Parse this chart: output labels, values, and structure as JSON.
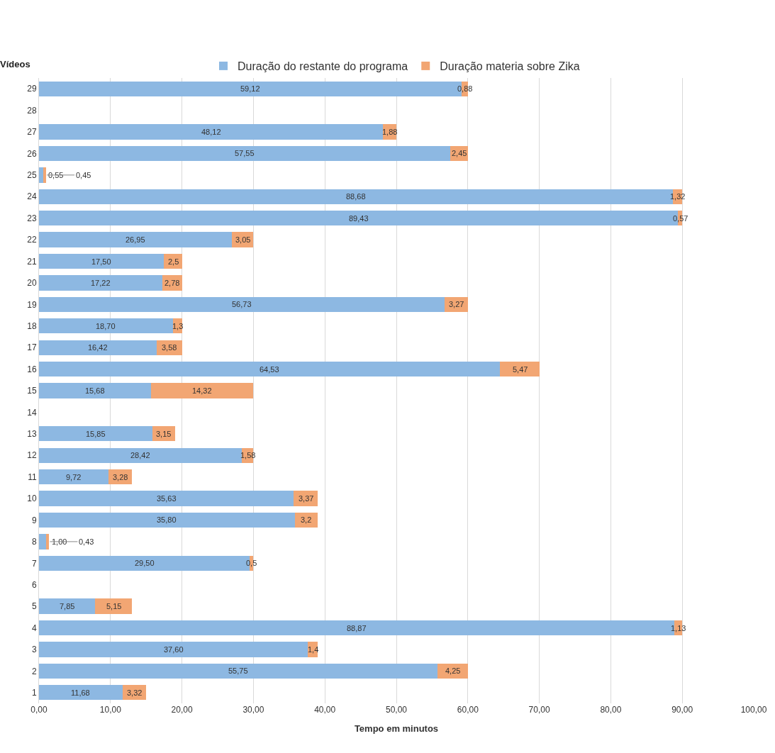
{
  "chart_data": {
    "type": "bar",
    "orientation": "horizontal",
    "stacked": true,
    "xlabel": "Tempo em minutos",
    "ylabel": "Vídeos",
    "categories": [
      "29",
      "28",
      "27",
      "26",
      "25",
      "24",
      "23",
      "22",
      "21",
      "20",
      "19",
      "18",
      "17",
      "16",
      "15",
      "14",
      "13",
      "12",
      "11",
      "10",
      "9",
      "8",
      "7",
      "6",
      "5",
      "4",
      "3",
      "2",
      "1"
    ],
    "series": [
      {
        "name": "Duração do restante do programa",
        "color": "#8db8e2",
        "values": [
          59.12,
          null,
          48.12,
          57.55,
          0.55,
          88.68,
          89.43,
          26.95,
          17.5,
          17.22,
          56.73,
          18.7,
          16.42,
          64.53,
          15.68,
          null,
          15.85,
          28.42,
          9.72,
          35.63,
          35.8,
          1.0,
          29.5,
          null,
          7.85,
          88.87,
          37.6,
          55.75,
          11.68
        ],
        "value_labels": [
          "59,12",
          null,
          "48,12",
          "57,55",
          "0,55",
          "88,68",
          "89,43",
          "26,95",
          "17,50",
          "17,22",
          "56,73",
          "18,70",
          "16,42",
          "64,53",
          "15,68",
          null,
          "15,85",
          "28,42",
          "9,72",
          "35,63",
          "35,80",
          "1,00",
          "29,50",
          null,
          "7,85",
          "88,87",
          "37,60",
          "55,75",
          "11,68"
        ]
      },
      {
        "name": "Duração materia sobre Zika",
        "color": "#f2a673",
        "values": [
          0.88,
          null,
          1.88,
          2.45,
          0.45,
          1.32,
          0.57,
          3.05,
          2.5,
          2.78,
          3.27,
          1.3,
          3.58,
          5.47,
          14.32,
          null,
          3.15,
          1.58,
          3.28,
          3.37,
          3.2,
          0.43,
          0.5,
          null,
          5.15,
          1.13,
          1.4,
          4.25,
          3.32
        ],
        "value_labels": [
          "0,88",
          null,
          "1,88",
          "2,45",
          "0,45",
          "1,32",
          "0,57",
          "3,05",
          "2,5",
          "2,78",
          "3,27",
          "1,3",
          "3,58",
          "5,47",
          "14,32",
          null,
          "3,15",
          "1,58",
          "3,28",
          "3,37",
          "3,2",
          "0,43",
          "0,5",
          null,
          "5,15",
          "1,13",
          "1,4",
          "4,25",
          "3,32"
        ]
      }
    ],
    "xlim": [
      0,
      100
    ],
    "xticks": [
      {
        "value": 0,
        "label": "0,00"
      },
      {
        "value": 10,
        "label": "10,00"
      },
      {
        "value": 20,
        "label": "20,00"
      },
      {
        "value": 30,
        "label": "30,00"
      },
      {
        "value": 40,
        "label": "40,00"
      },
      {
        "value": 50,
        "label": "50,00"
      },
      {
        "value": 60,
        "label": "60,00"
      },
      {
        "value": 70,
        "label": "70,00"
      },
      {
        "value": 80,
        "label": "80,00"
      },
      {
        "value": 90,
        "label": "90,00"
      },
      {
        "value": 100,
        "label": "100,00"
      }
    ],
    "grid": "x",
    "legend": "top"
  }
}
